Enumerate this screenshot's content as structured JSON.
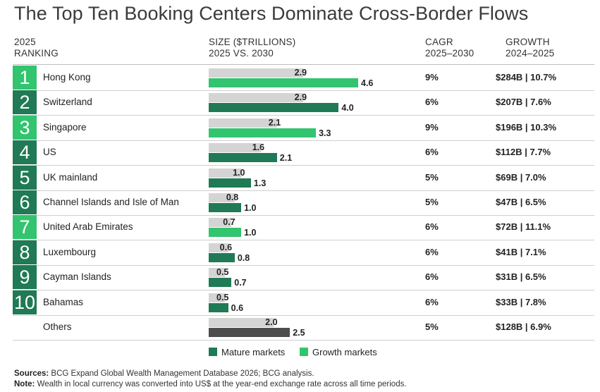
{
  "title": "The Top Ten Booking Centers Dominate Cross-Border Flows",
  "headers": {
    "ranking": [
      "2025",
      "RANKING"
    ],
    "size": [
      "SIZE ($TRILLIONS)",
      "2025 VS. 2030"
    ],
    "cagr": [
      "CAGR",
      "2025–2030"
    ],
    "growth": [
      "GROWTH",
      "2024–2025"
    ]
  },
  "colors": {
    "mature": "#1f7a55",
    "growth": "#32c46e",
    "others": "#4d4d4d",
    "bar_2025": "#d4d4d4"
  },
  "chart_data": {
    "type": "bar",
    "categories": [
      "Hong Kong",
      "Switzerland",
      "Singapore",
      "US",
      "UK mainland",
      "Channel Islands and Isle of Man",
      "United Arab Emirates",
      "Luxembourg",
      "Cayman Islands",
      "Bahamas",
      "Others"
    ],
    "ranks": [
      "1",
      "2",
      "3",
      "4",
      "5",
      "6",
      "7",
      "8",
      "9",
      "10",
      ""
    ],
    "market_type": [
      "growth",
      "mature",
      "growth",
      "mature",
      "mature",
      "mature",
      "growth",
      "mature",
      "mature",
      "mature",
      "others"
    ],
    "series": [
      {
        "values": [
          2.9,
          2.9,
          2.1,
          1.6,
          1.0,
          0.8,
          0.7,
          0.6,
          0.5,
          0.5,
          2.0
        ]
      },
      {
        "values": [
          4.6,
          4.0,
          3.3,
          2.1,
          1.3,
          1.0,
          1.0,
          0.8,
          0.7,
          0.6,
          2.5
        ]
      }
    ],
    "labels_2025": [
      "2.9",
      "2.9",
      "2.1",
      "1.6",
      "1.0",
      "0.8",
      "0.7",
      "0.6",
      "0.5",
      "0.5",
      "2.0"
    ],
    "labels_2030": [
      "4.6",
      "4.0",
      "3.3",
      "2.1",
      "1.3",
      "1.0",
      "1.0",
      "0.8",
      "0.7",
      "0.6",
      "2.5"
    ],
    "cagr": [
      "9%",
      "6%",
      "9%",
      "6%",
      "5%",
      "5%",
      "6%",
      "6%",
      "6%",
      "6%",
      "5%"
    ],
    "growth": [
      "$284B | 10.7%",
      "$207B | 7.6%",
      "$196B | 10.3%",
      "$112B | 7.7%",
      "$69B | 7.0%",
      "$47B | 6.5%",
      "$72B | 11.1%",
      "$41B | 7.1%",
      "$31B | 6.5%",
      "$33B | 7.8%",
      "$128B | 6.9%"
    ],
    "xlim": [
      0,
      4.6
    ]
  },
  "legend": {
    "mature": "Mature markets",
    "growth": "Growth markets"
  },
  "footer": {
    "sources_label": "Sources:",
    "sources_text": "BCG Expand Global Wealth Management Database 2026; BCG analysis.",
    "note_label": "Note:",
    "note_text": "Wealth in local currency was converted into US$ at the year-end exchange rate across all time periods."
  }
}
